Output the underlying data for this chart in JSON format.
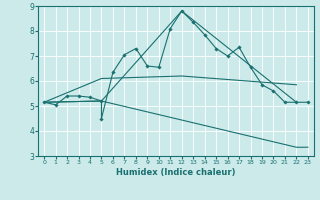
{
  "xlabel": "Humidex (Indice chaleur)",
  "bg_color": "#cceaea",
  "grid_color": "#ffffff",
  "line_color": "#1a7070",
  "xlim": [
    -0.5,
    23.5
  ],
  "ylim": [
    3,
    9
  ],
  "xtick_labels": [
    "0",
    "1",
    "2",
    "3",
    "4",
    "5",
    "6",
    "7",
    "8",
    "9",
    "10",
    "11",
    "12",
    "13",
    "14",
    "15",
    "16",
    "17",
    "18",
    "19",
    "20",
    "21",
    "22",
    "23"
  ],
  "xtick_pos": [
    0,
    1,
    2,
    3,
    4,
    5,
    6,
    7,
    8,
    9,
    10,
    11,
    12,
    13,
    14,
    15,
    16,
    17,
    18,
    19,
    20,
    21,
    22,
    23
  ],
  "yticks": [
    3,
    4,
    5,
    6,
    7,
    8,
    9
  ],
  "lines": [
    {
      "x": [
        0,
        1,
        2,
        3,
        4,
        5,
        5,
        6,
        7,
        8,
        9,
        10,
        11,
        12,
        13,
        14,
        15,
        16,
        17,
        18,
        19,
        20,
        21,
        22,
        23
      ],
      "y": [
        5.15,
        5.05,
        5.4,
        5.4,
        5.35,
        5.2,
        4.5,
        6.35,
        7.05,
        7.3,
        6.6,
        6.55,
        8.1,
        8.8,
        8.35,
        7.85,
        7.3,
        7.0,
        7.35,
        6.55,
        5.85,
        5.6,
        5.15,
        5.15,
        5.15
      ],
      "marker": "D",
      "markersize": 1.8
    },
    {
      "x": [
        0,
        5,
        12,
        22
      ],
      "y": [
        5.15,
        5.2,
        8.8,
        5.15
      ],
      "marker": null
    },
    {
      "x": [
        0,
        5,
        12,
        22
      ],
      "y": [
        5.15,
        6.1,
        6.2,
        5.85
      ],
      "marker": null
    },
    {
      "x": [
        0,
        5,
        22,
        23
      ],
      "y": [
        5.15,
        5.2,
        3.35,
        3.35
      ],
      "marker": null
    }
  ]
}
